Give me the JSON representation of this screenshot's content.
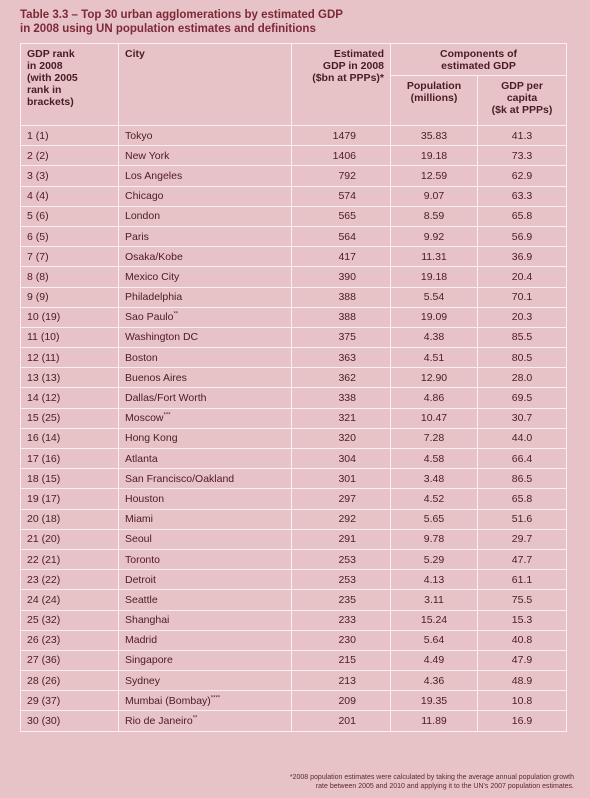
{
  "title_line1": "Table 3.3 – Top 30 urban agglomerations by estimated GDP",
  "title_line2": "in 2008 using UN population estimates and definitions",
  "headers": {
    "rank": [
      "GDP rank",
      "in 2008",
      "(with 2005",
      "rank in",
      "brackets)"
    ],
    "city": "City",
    "gdp": [
      "Estimated",
      "GDP in 2008",
      "($bn at PPPs)*"
    ],
    "components": [
      "Components of",
      "estimated GDP"
    ],
    "population": [
      "Population",
      "(millions)"
    ],
    "per_capita": [
      "GDP per",
      "capita",
      "($k at PPPs)"
    ]
  },
  "rows": [
    {
      "rank": "1 (1)",
      "city": "Tokyo",
      "sup": "",
      "gdp": "1479",
      "pop": "35.83",
      "cap": "41.3"
    },
    {
      "rank": "2 (2)",
      "city": "New York",
      "sup": "",
      "gdp": "1406",
      "pop": "19.18",
      "cap": "73.3"
    },
    {
      "rank": "3 (3)",
      "city": "Los Angeles",
      "sup": "",
      "gdp": "792",
      "pop": "12.59",
      "cap": "62.9"
    },
    {
      "rank": "4 (4)",
      "city": "Chicago",
      "sup": "",
      "gdp": "574",
      "pop": "9.07",
      "cap": "63.3"
    },
    {
      "rank": "5 (6)",
      "city": "London",
      "sup": "",
      "gdp": "565",
      "pop": "8.59",
      "cap": "65.8"
    },
    {
      "rank": "6 (5)",
      "city": "Paris",
      "sup": "",
      "gdp": "564",
      "pop": "9.92",
      "cap": "56.9"
    },
    {
      "rank": "7 (7)",
      "city": "Osaka/Kobe",
      "sup": "",
      "gdp": "417",
      "pop": "11.31",
      "cap": "36.9"
    },
    {
      "rank": "8 (8)",
      "city": "Mexico City",
      "sup": "",
      "gdp": "390",
      "pop": "19.18",
      "cap": "20.4"
    },
    {
      "rank": "9 (9)",
      "city": "Philadelphia",
      "sup": "",
      "gdp": "388",
      "pop": "5.54",
      "cap": "70.1"
    },
    {
      "rank": "10 (19)",
      "city": "Sao Paulo",
      "sup": "**",
      "gdp": "388",
      "pop": "19.09",
      "cap": "20.3"
    },
    {
      "rank": "11 (10)",
      "city": "Washington DC",
      "sup": "",
      "gdp": "375",
      "pop": "4.38",
      "cap": "85.5"
    },
    {
      "rank": "12 (11)",
      "city": "Boston",
      "sup": "",
      "gdp": "363",
      "pop": "4.51",
      "cap": "80.5"
    },
    {
      "rank": "13 (13)",
      "city": "Buenos Aires",
      "sup": "",
      "gdp": "362",
      "pop": "12.90",
      "cap": "28.0"
    },
    {
      "rank": "14 (12)",
      "city": "Dallas/Fort Worth",
      "sup": "",
      "gdp": "338",
      "pop": "4.86",
      "cap": "69.5"
    },
    {
      "rank": "15 (25)",
      "city": "Moscow",
      "sup": "***",
      "gdp": "321",
      "pop": "10.47",
      "cap": "30.7"
    },
    {
      "rank": "16 (14)",
      "city": "Hong Kong",
      "sup": "",
      "gdp": "320",
      "pop": "7.28",
      "cap": "44.0"
    },
    {
      "rank": "17 (16)",
      "city": "Atlanta",
      "sup": "",
      "gdp": "304",
      "pop": "4.58",
      "cap": "66.4"
    },
    {
      "rank": "18 (15)",
      "city": "San Francisco/Oakland",
      "sup": "",
      "gdp": "301",
      "pop": "3.48",
      "cap": "86.5"
    },
    {
      "rank": "19 (17)",
      "city": "Houston",
      "sup": "",
      "gdp": "297",
      "pop": "4.52",
      "cap": "65.8"
    },
    {
      "rank": "20 (18)",
      "city": "Miami",
      "sup": "",
      "gdp": "292",
      "pop": "5.65",
      "cap": "51.6"
    },
    {
      "rank": "21 (20)",
      "city": "Seoul",
      "sup": "",
      "gdp": "291",
      "pop": "9.78",
      "cap": "29.7"
    },
    {
      "rank": "22 (21)",
      "city": "Toronto",
      "sup": "",
      "gdp": "253",
      "pop": "5.29",
      "cap": "47.7"
    },
    {
      "rank": "23 (22)",
      "city": "Detroit",
      "sup": "",
      "gdp": "253",
      "pop": "4.13",
      "cap": "61.1"
    },
    {
      "rank": "24 (24)",
      "city": "Seattle",
      "sup": "",
      "gdp": "235",
      "pop": "3.11",
      "cap": "75.5"
    },
    {
      "rank": "25 (32)",
      "city": "Shanghai",
      "sup": "",
      "gdp": "233",
      "pop": "15.24",
      "cap": "15.3"
    },
    {
      "rank": "26 (23)",
      "city": "Madrid",
      "sup": "",
      "gdp": "230",
      "pop": "5.64",
      "cap": "40.8"
    },
    {
      "rank": "27 (36)",
      "city": "Singapore",
      "sup": "",
      "gdp": "215",
      "pop": "4.49",
      "cap": "47.9"
    },
    {
      "rank": "28 (26)",
      "city": "Sydney",
      "sup": "",
      "gdp": "213",
      "pop": "4.36",
      "cap": "48.9"
    },
    {
      "rank": "29 (37)",
      "city": "Mumbai (Bombay)",
      "sup": "****",
      "gdp": "209",
      "pop": "19.35",
      "cap": "10.8"
    },
    {
      "rank": "30 (30)",
      "city": "Rio de Janeiro",
      "sup": "**",
      "gdp": "201",
      "pop": "11.89",
      "cap": "16.9"
    }
  ],
  "footnote_line1": "*2008 population estimates were calculated by taking the average annual population growth",
  "footnote_line2": "rate between 2005 and 2010 and applying it to the UN's 2007 population estimates."
}
